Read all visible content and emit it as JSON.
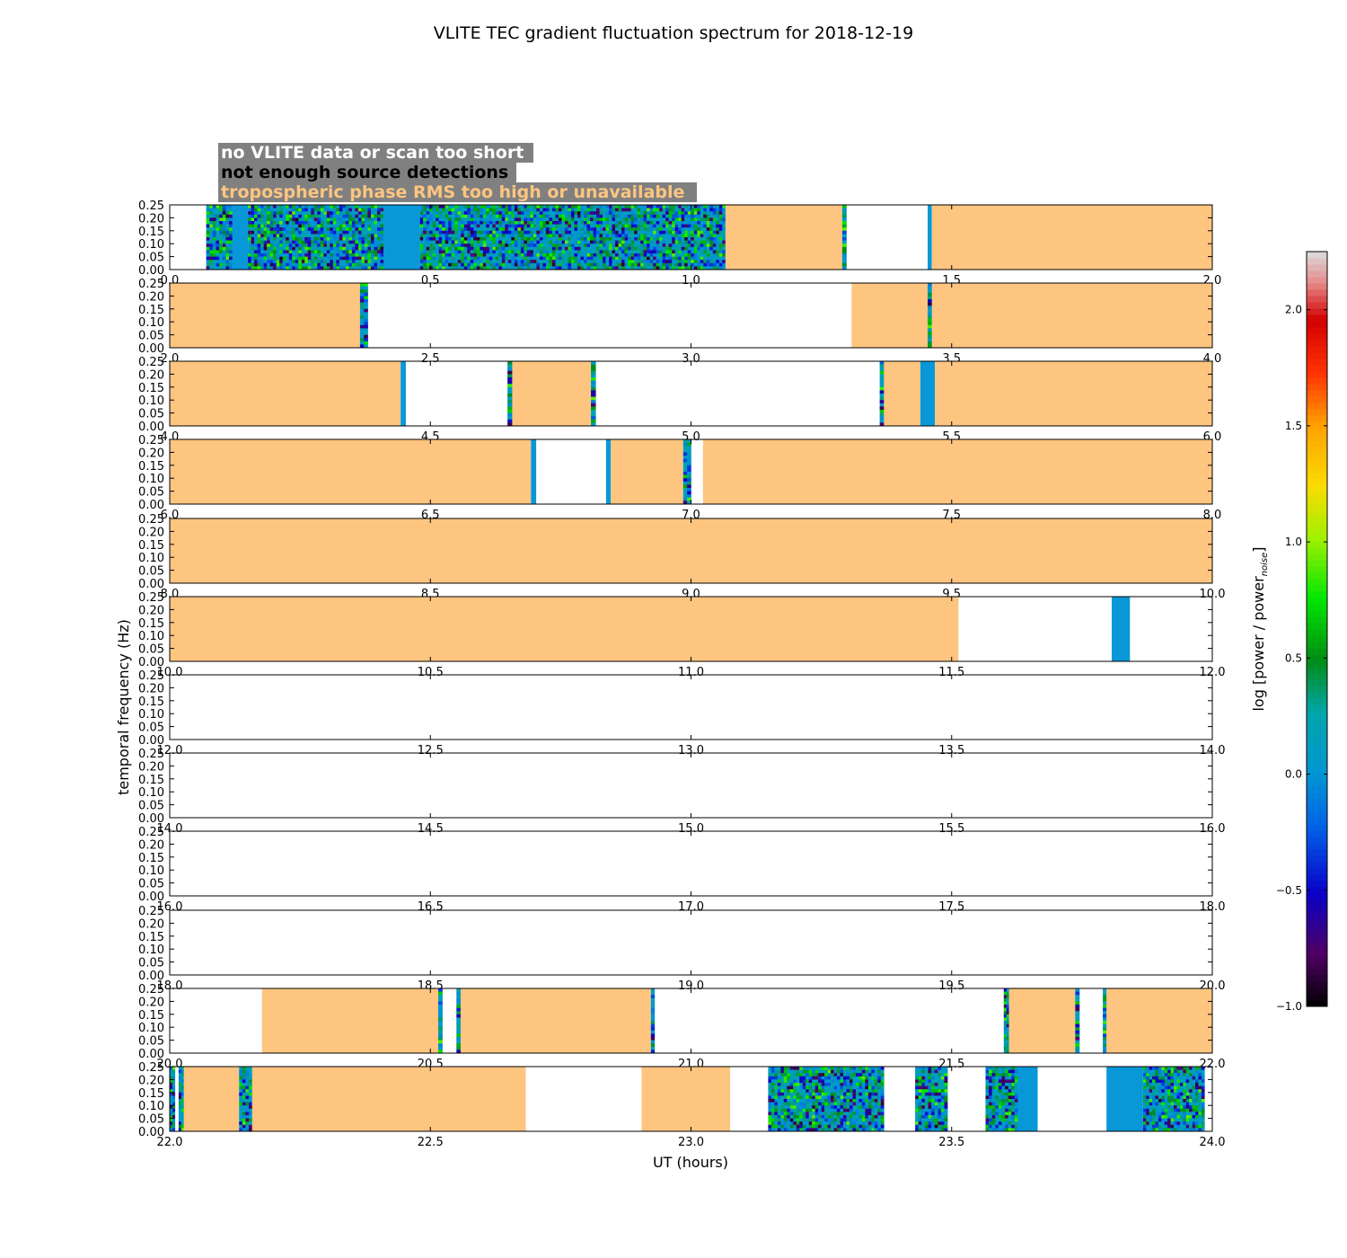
{
  "chart_data": {
    "type": "heatmap",
    "title": "VLITE TEC gradient fluctuation spectrum for 2018-12-19",
    "xlabel": "UT (hours)",
    "ylabel": "temporal frequency (Hz)",
    "colorbar_label_prefix": "log [power / power",
    "colorbar_label_sub": "noise",
    "colorbar_label_suffix": "]",
    "colorbar_range": [
      -1.0,
      2.25
    ],
    "colorbar_ticks": [
      "−1.0",
      "−0.5",
      "0.0",
      "0.5",
      "1.0",
      "1.5",
      "2.0"
    ],
    "ylim": [
      0,
      0.25
    ],
    "yticks": [
      "0.00",
      "0.05",
      "0.10",
      "0.15",
      "0.20",
      "0.25"
    ],
    "legend": [
      {
        "label": "no VLITE data or scan too short",
        "text_color": "#ffffff"
      },
      {
        "label": "not enough source detections",
        "text_color": "#000000"
      },
      {
        "label": "tropospheric phase RMS too high or unavailable",
        "text_color": "#fdc580"
      }
    ],
    "legend_box_color": "#808080",
    "colors": {
      "troposphere": "#fdc580",
      "flat_spectrum": "#0898d8"
    },
    "panels": [
      {
        "xlim": [
          0,
          2
        ],
        "xticks": [
          "0.0",
          "0.5",
          "1.0",
          "1.5",
          "2.0"
        ],
        "segments": [
          {
            "start": 0.07,
            "end": 0.12,
            "kind": "spectrum"
          },
          {
            "start": 0.12,
            "end": 0.15,
            "kind": "flat"
          },
          {
            "start": 0.15,
            "end": 0.41,
            "kind": "spectrum"
          },
          {
            "start": 0.41,
            "end": 0.48,
            "kind": "flat"
          },
          {
            "start": 0.48,
            "end": 1.066,
            "kind": "spectrum"
          },
          {
            "start": 1.066,
            "end": 1.29,
            "kind": "troposphere"
          },
          {
            "start": 1.29,
            "end": 1.298,
            "kind": "spectrum"
          },
          {
            "start": 1.454,
            "end": 1.462,
            "kind": "flat"
          },
          {
            "start": 1.462,
            "end": 2.0,
            "kind": "troposphere"
          }
        ]
      },
      {
        "xlim": [
          2,
          4
        ],
        "xticks": [
          "2.0",
          "2.5",
          "3.0",
          "3.5",
          "4.0"
        ],
        "segments": [
          {
            "start": 2.0,
            "end": 2.365,
            "kind": "troposphere"
          },
          {
            "start": 2.365,
            "end": 2.38,
            "kind": "spectrum"
          },
          {
            "start": 3.308,
            "end": 3.454,
            "kind": "troposphere"
          },
          {
            "start": 3.454,
            "end": 3.462,
            "kind": "spectrum"
          },
          {
            "start": 3.462,
            "end": 4.0,
            "kind": "troposphere"
          }
        ]
      },
      {
        "xlim": [
          4,
          6
        ],
        "xticks": [
          "4.0",
          "4.5",
          "5.0",
          "5.5",
          "6.0"
        ],
        "segments": [
          {
            "start": 4.0,
            "end": 4.443,
            "kind": "troposphere"
          },
          {
            "start": 4.443,
            "end": 4.453,
            "kind": "flat"
          },
          {
            "start": 4.648,
            "end": 4.657,
            "kind": "spectrum"
          },
          {
            "start": 4.657,
            "end": 4.808,
            "kind": "troposphere"
          },
          {
            "start": 4.808,
            "end": 4.817,
            "kind": "spectrum"
          },
          {
            "start": 5.362,
            "end": 5.37,
            "kind": "spectrum"
          },
          {
            "start": 5.37,
            "end": 5.44,
            "kind": "troposphere"
          },
          {
            "start": 5.44,
            "end": 5.468,
            "kind": "flat"
          },
          {
            "start": 5.468,
            "end": 6.0,
            "kind": "troposphere"
          }
        ]
      },
      {
        "xlim": [
          6,
          8
        ],
        "xticks": [
          "6.0",
          "6.5",
          "7.0",
          "7.5",
          "8.0"
        ],
        "segments": [
          {
            "start": 6.0,
            "end": 6.693,
            "kind": "troposphere"
          },
          {
            "start": 6.693,
            "end": 6.703,
            "kind": "flat"
          },
          {
            "start": 6.837,
            "end": 6.846,
            "kind": "flat"
          },
          {
            "start": 6.846,
            "end": 6.985,
            "kind": "troposphere"
          },
          {
            "start": 6.985,
            "end": 7.0,
            "kind": "spectrum"
          },
          {
            "start": 7.023,
            "end": 8.0,
            "kind": "troposphere"
          }
        ]
      },
      {
        "xlim": [
          8,
          10
        ],
        "xticks": [
          "8.0",
          "8.5",
          "9.0",
          "9.5",
          "10.0"
        ],
        "segments": [
          {
            "start": 8.0,
            "end": 10.0,
            "kind": "troposphere"
          }
        ]
      },
      {
        "xlim": [
          10,
          12
        ],
        "xticks": [
          "10.0",
          "10.5",
          "11.0",
          "11.5",
          "12.0"
        ],
        "segments": [
          {
            "start": 10.0,
            "end": 11.513,
            "kind": "troposphere"
          },
          {
            "start": 11.807,
            "end": 11.842,
            "kind": "flat"
          }
        ]
      },
      {
        "xlim": [
          12,
          14
        ],
        "xticks": [
          "12.0",
          "12.5",
          "13.0",
          "13.5",
          "14.0"
        ],
        "segments": []
      },
      {
        "xlim": [
          14,
          16
        ],
        "xticks": [
          "14.0",
          "14.5",
          "15.0",
          "15.5",
          "16.0"
        ],
        "segments": []
      },
      {
        "xlim": [
          16,
          18
        ],
        "xticks": [
          "16.0",
          "16.5",
          "17.0",
          "17.5",
          "18.0"
        ],
        "segments": []
      },
      {
        "xlim": [
          18,
          20
        ],
        "xticks": [
          "18.0",
          "18.5",
          "19.0",
          "19.5",
          "20.0"
        ],
        "segments": []
      },
      {
        "xlim": [
          20,
          22
        ],
        "xticks": [
          "20.0",
          "20.5",
          "21.0",
          "21.5",
          "22.0"
        ],
        "segments": [
          {
            "start": 20.177,
            "end": 20.515,
            "kind": "troposphere"
          },
          {
            "start": 20.515,
            "end": 20.523,
            "kind": "spectrum"
          },
          {
            "start": 20.55,
            "end": 20.558,
            "kind": "spectrum"
          },
          {
            "start": 20.558,
            "end": 20.923,
            "kind": "troposphere"
          },
          {
            "start": 20.923,
            "end": 20.93,
            "kind": "spectrum"
          },
          {
            "start": 21.6,
            "end": 21.61,
            "kind": "spectrum"
          },
          {
            "start": 21.61,
            "end": 21.737,
            "kind": "troposphere"
          },
          {
            "start": 21.737,
            "end": 21.745,
            "kind": "spectrum"
          },
          {
            "start": 21.79,
            "end": 21.797,
            "kind": "spectrum"
          },
          {
            "start": 21.797,
            "end": 22.0,
            "kind": "troposphere"
          }
        ]
      },
      {
        "xlim": [
          22,
          24
        ],
        "xticks": [
          "22.0",
          "22.5",
          "23.0",
          "23.5",
          "24.0"
        ],
        "segments": [
          {
            "start": 22.0,
            "end": 22.01,
            "kind": "spectrum"
          },
          {
            "start": 22.017,
            "end": 22.027,
            "kind": "spectrum"
          },
          {
            "start": 22.027,
            "end": 22.133,
            "kind": "troposphere"
          },
          {
            "start": 22.133,
            "end": 22.158,
            "kind": "spectrum"
          },
          {
            "start": 22.158,
            "end": 22.683,
            "kind": "troposphere"
          },
          {
            "start": 22.905,
            "end": 23.075,
            "kind": "troposphere"
          },
          {
            "start": 23.148,
            "end": 23.37,
            "kind": "spectrum"
          },
          {
            "start": 23.43,
            "end": 23.492,
            "kind": "spectrum"
          },
          {
            "start": 23.565,
            "end": 23.627,
            "kind": "spectrum"
          },
          {
            "start": 23.627,
            "end": 23.665,
            "kind": "flat"
          },
          {
            "start": 23.797,
            "end": 23.867,
            "kind": "flat"
          },
          {
            "start": 23.867,
            "end": 23.985,
            "kind": "spectrum"
          }
        ]
      }
    ]
  }
}
